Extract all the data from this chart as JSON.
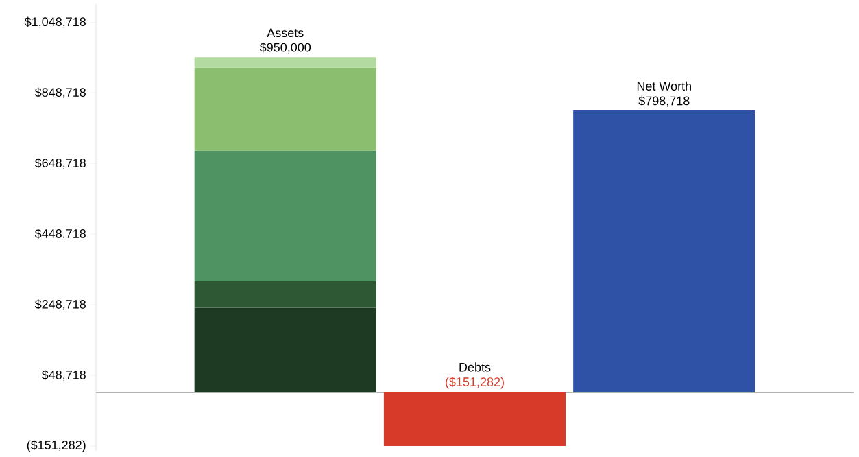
{
  "chart_data": {
    "type": "bar",
    "stacked": true,
    "categories": [
      "Assets",
      "Debts",
      "Net Worth"
    ],
    "series": [
      {
        "color": "#1f3a22",
        "values": [
          240000,
          null,
          null
        ]
      },
      {
        "color": "#2e5733",
        "values": [
          75000,
          null,
          null
        ]
      },
      {
        "color": "#4f9362",
        "values": [
          370000,
          null,
          null
        ]
      },
      {
        "color": "#8bbf6f",
        "values": [
          235000,
          null,
          null
        ]
      },
      {
        "color": "#b3daa0",
        "values": [
          30000,
          null,
          null
        ]
      },
      {
        "color": "#d83a2a",
        "values": [
          null,
          -151282,
          null
        ]
      },
      {
        "color": "#2f52a6",
        "values": [
          null,
          null,
          798718
        ]
      }
    ],
    "totals": [
      "$950,000",
      "($151,282)",
      "$798,718"
    ],
    "ylim": [
      -165000,
      1100000
    ],
    "yticks": [
      {
        "value": -151282,
        "label": "($151,282)"
      },
      {
        "value": 48718,
        "label": "$48,718"
      },
      {
        "value": 248718,
        "label": "$248,718"
      },
      {
        "value": 448718,
        "label": "$448,718"
      },
      {
        "value": 648718,
        "label": "$648,718"
      },
      {
        "value": 848718,
        "label": "$848,718"
      },
      {
        "value": 1048718,
        "label": "$1,048,718"
      }
    ],
    "tick_labels": "y"
  }
}
